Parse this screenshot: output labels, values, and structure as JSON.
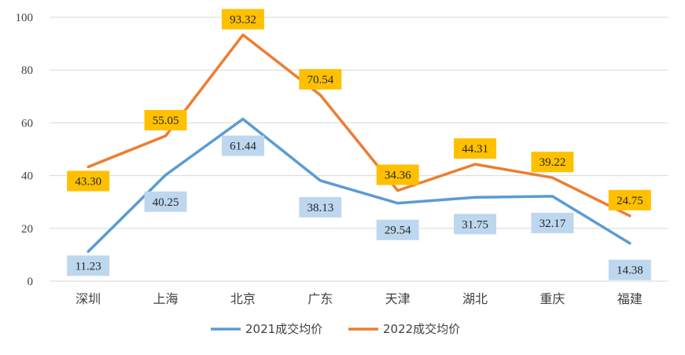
{
  "chart_data": {
    "type": "line",
    "categories": [
      "深圳",
      "上海",
      "北京",
      "广东",
      "天津",
      "湖北",
      "重庆",
      "福建"
    ],
    "series": [
      {
        "name": "2021成交均价",
        "values": [
          11.23,
          40.25,
          61.44,
          38.13,
          29.54,
          31.75,
          32.17,
          14.38
        ],
        "labels": [
          "11.23",
          "40.25",
          "61.44",
          "38.13",
          "29.54",
          "31.75",
          "32.17",
          "14.38"
        ],
        "color": "#5B9BD5",
        "label_bg": "#BDD7EE"
      },
      {
        "name": "2022成交均价",
        "values": [
          43.3,
          55.05,
          93.32,
          70.54,
          34.36,
          44.31,
          39.22,
          24.75
        ],
        "labels": [
          "43.30",
          "55.05",
          "93.32",
          "70.54",
          "34.36",
          "44.31",
          "39.22",
          "24.75"
        ],
        "color": "#ED7D31",
        "label_bg": "#FFC000"
      }
    ],
    "yticks": [
      "0",
      "20",
      "40",
      "60",
      "80",
      "100"
    ],
    "ylim": [
      0,
      100
    ],
    "grid": true,
    "legend": "bottom"
  }
}
